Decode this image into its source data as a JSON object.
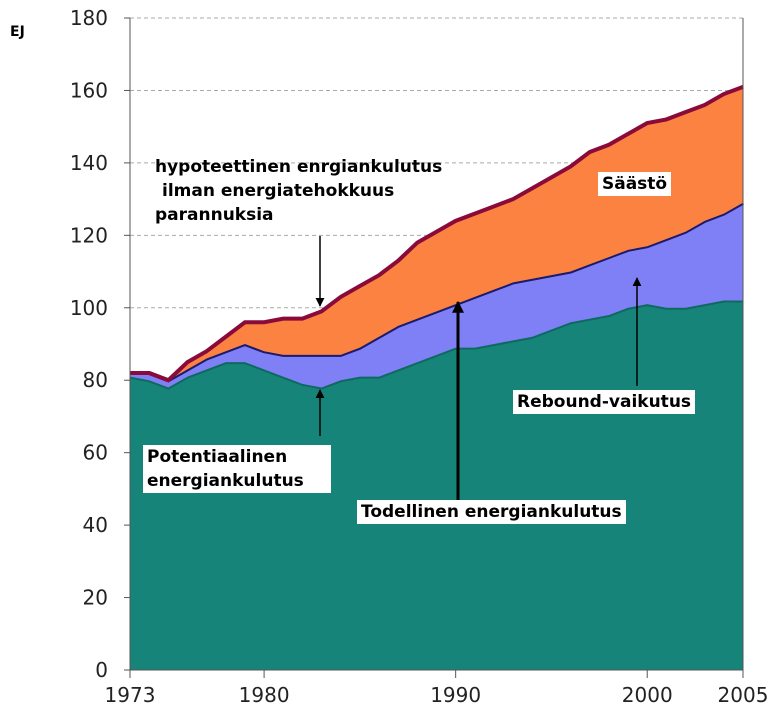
{
  "chart_data": {
    "type": "stacked-area",
    "ylabel": "EJ",
    "x": [
      1973,
      1974,
      1975,
      1976,
      1977,
      1978,
      1979,
      1980,
      1981,
      1982,
      1983,
      1984,
      1985,
      1986,
      1987,
      1988,
      1989,
      1990,
      1991,
      1992,
      1993,
      1994,
      1995,
      1996,
      1997,
      1998,
      1999,
      2000,
      2001,
      2002,
      2003,
      2004,
      2005
    ],
    "xlim": [
      1973,
      2005
    ],
    "xticks": [
      1973,
      1980,
      1990,
      2000,
      2005
    ],
    "ylim": [
      0,
      180
    ],
    "yticks": [
      0,
      20,
      40,
      60,
      80,
      100,
      120,
      140,
      160,
      180
    ],
    "grid": true,
    "series": [
      {
        "name": "Potentiaalinen energiankulutus",
        "color": "#168479",
        "edge": "#0e6a61",
        "values": [
          81,
          80,
          78,
          81,
          83,
          85,
          85,
          83,
          81,
          79,
          78,
          80,
          81,
          81,
          83,
          85,
          87,
          89,
          89,
          90,
          91,
          92,
          94,
          96,
          97,
          98,
          100,
          101,
          100,
          100,
          101,
          102,
          102
        ]
      },
      {
        "name": "Rebound-vaikutus",
        "color": "#8080f6",
        "edge": "#1a1a6e",
        "values": [
          1,
          2,
          2,
          2,
          3,
          3,
          5,
          5,
          6,
          8,
          9,
          7,
          8,
          11,
          12,
          12,
          12,
          12,
          14,
          15,
          16,
          16,
          15,
          14,
          15,
          16,
          16,
          16,
          19,
          21,
          23,
          24,
          27
        ]
      },
      {
        "name": "Säästö",
        "color": "#fb8240",
        "edge": "#8a0a3a",
        "values": [
          0,
          0,
          0,
          2,
          2,
          4,
          6,
          8,
          10,
          10,
          12,
          16,
          17,
          17,
          18,
          21,
          22,
          23,
          23,
          23,
          23,
          25,
          27,
          29,
          31,
          31,
          32,
          34,
          33,
          33,
          32,
          33,
          32
        ]
      }
    ],
    "annotations": {
      "hypothetical": [
        "hypoteettinen enrgiankulutus",
        "ilman energiatehokkuus",
        "parannuksia"
      ],
      "actual": "Todellinen energiankulutus"
    }
  }
}
